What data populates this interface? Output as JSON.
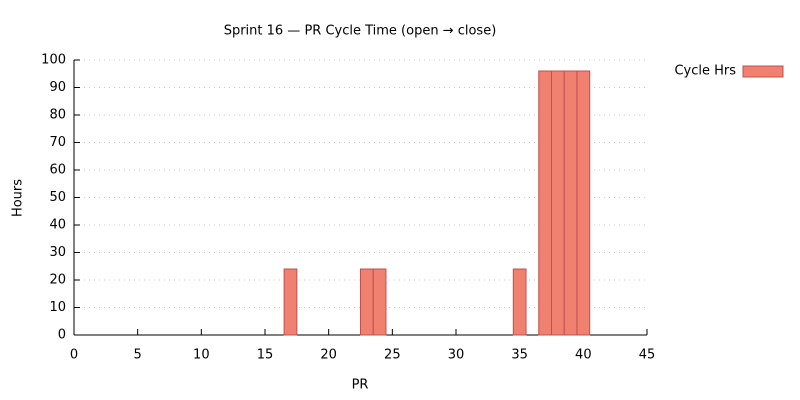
{
  "chart_data": {
    "type": "bar",
    "title": "Sprint 16 — PR Cycle Time (open → close)",
    "x_label": "PR",
    "y_label": "Hours",
    "x": [
      17,
      23,
      24,
      35,
      37,
      38,
      39,
      40
    ],
    "series": [
      {
        "name": "Cycle Hrs",
        "color": "#f08070",
        "values": [
          24,
          24,
          24,
          24,
          96,
          96,
          96,
          96
        ]
      }
    ],
    "xlim": [
      0,
      45
    ],
    "xticks": [
      0,
      5,
      10,
      15,
      20,
      25,
      30,
      35,
      40,
      45
    ],
    "ylim": [
      0,
      100
    ],
    "yticks": [
      0,
      10,
      20,
      30,
      40,
      50,
      60,
      70,
      80,
      90,
      100
    ],
    "grid": true,
    "legend": "top-right"
  }
}
